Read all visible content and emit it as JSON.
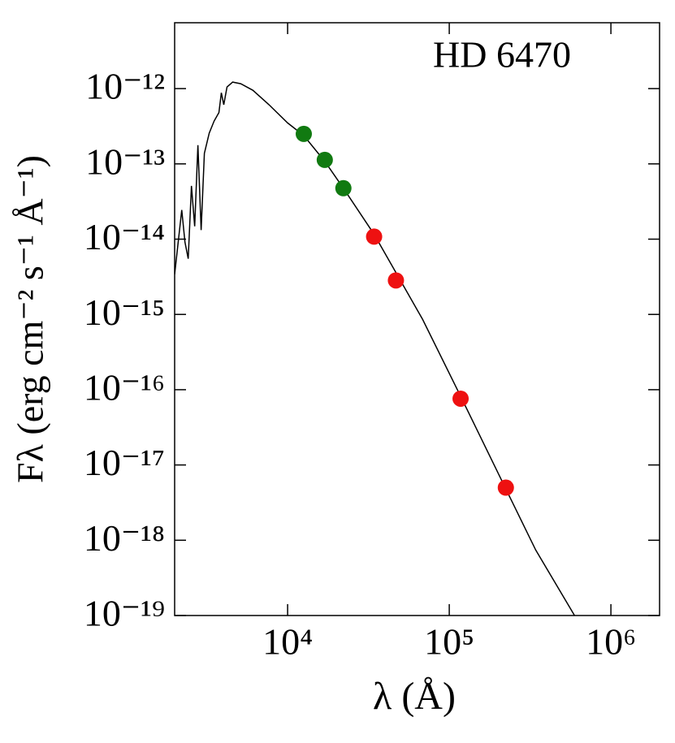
{
  "chart_data": {
    "type": "scatter",
    "annotation": "HD 6470",
    "xlabel": "λ (Å)",
    "ylabel": "Fλ (erg cm⁻² s⁻¹ Å⁻¹)",
    "xscale": "log",
    "yscale": "log",
    "xlim": [
      2000,
      2000000
    ],
    "ylim": [
      1e-19,
      7.5e-12
    ],
    "xticks": [
      {
        "value": 10000,
        "label": "10⁴"
      },
      {
        "value": 100000,
        "label": "10⁵"
      },
      {
        "value": 1000000,
        "label": "10⁶"
      }
    ],
    "yticks": [
      {
        "value": 1e-12,
        "label": "10⁻¹²"
      },
      {
        "value": 1e-13,
        "label": "10⁻¹³"
      },
      {
        "value": 1e-14,
        "label": "10⁻¹⁴"
      },
      {
        "value": 1e-15,
        "label": "10⁻¹⁵"
      },
      {
        "value": 1e-16,
        "label": "10⁻¹⁶"
      },
      {
        "value": 1e-17,
        "label": "10⁻¹⁷"
      },
      {
        "value": 1e-18,
        "label": "10⁻¹⁸"
      },
      {
        "value": 1e-19,
        "label": "10⁻¹⁹"
      }
    ],
    "grid": false,
    "series": [
      {
        "kind": "line",
        "color": "#000000",
        "x": [
          2000,
          2213,
          2317,
          2427,
          2541,
          2661,
          2786,
          2917,
          3055,
          3273,
          3508,
          3758,
          3890,
          4027,
          4217,
          4571,
          5129,
          6095,
          7674,
          10000,
          12590,
          16980,
          22130,
          34280,
          46770,
          68390,
          117500,
          223900,
          342800,
          595700
        ],
        "values": [
          3.4e-15,
          2.44e-14,
          9.1e-15,
          5.5e-15,
          5.1e-14,
          1.48e-14,
          1.77e-13,
          1.32e-14,
          1.38e-13,
          2.56e-13,
          3.7e-13,
          4.8e-13,
          8.8e-13,
          6.1e-13,
          1.05e-12,
          1.22e-12,
          1.16e-12,
          9.5e-13,
          6.1e-13,
          3.5e-13,
          2.38e-13,
          1.08e-13,
          4.75e-14,
          1.16e-14,
          3.6e-15,
          8.6e-16,
          8.2e-17,
          4.8e-18,
          7.4e-19,
          1e-19
        ]
      },
      {
        "kind": "points",
        "color": "#117a11",
        "x": [
          12590,
          16980,
          22130
        ],
        "values": [
          2.5e-13,
          1.13e-13,
          4.75e-14
        ]
      },
      {
        "kind": "points",
        "color": "#ee1111",
        "x": [
          34280,
          46770,
          117500,
          223900
        ],
        "values": [
          1.08e-14,
          2.83e-15,
          7.6e-17,
          5e-18
        ]
      }
    ]
  }
}
